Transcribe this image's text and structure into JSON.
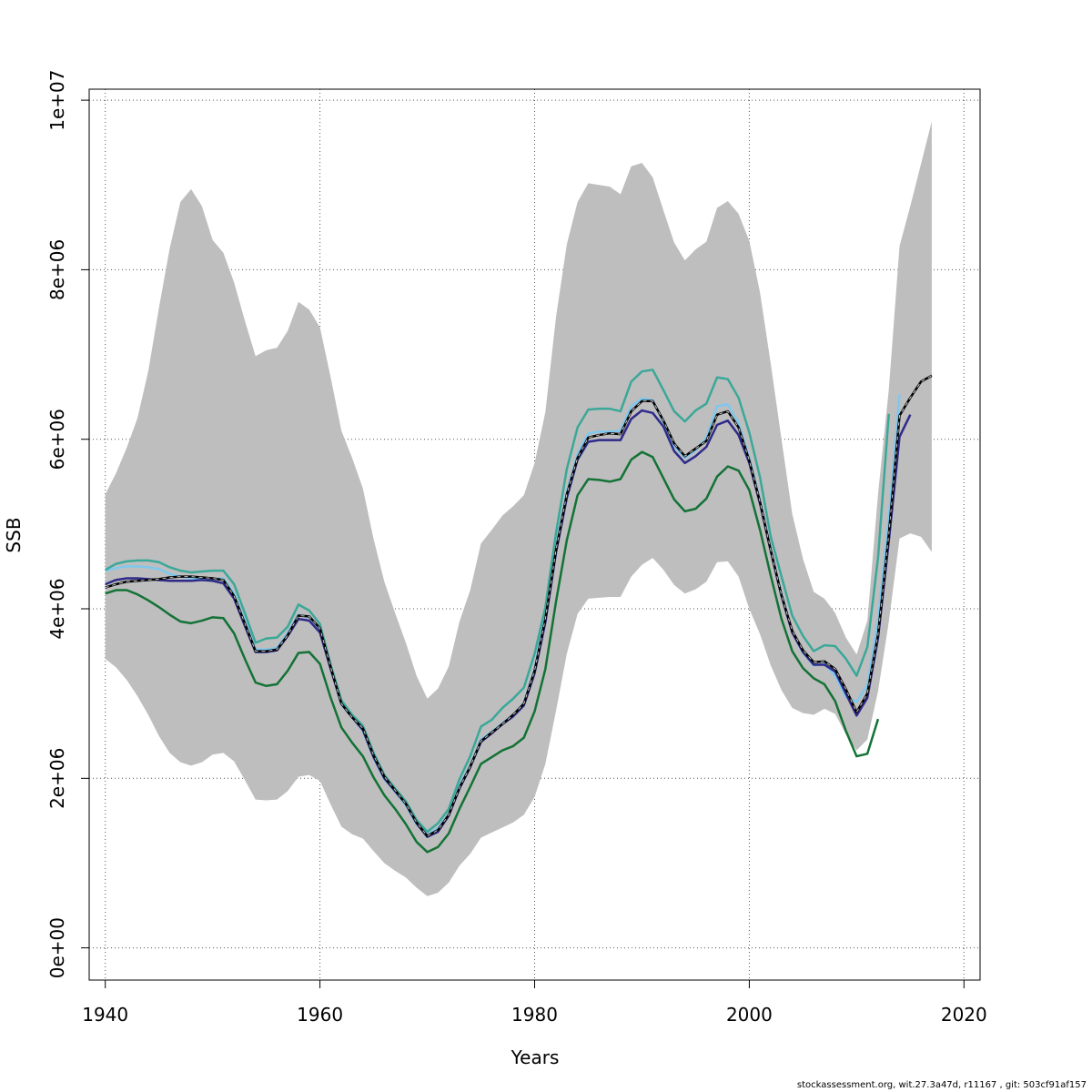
{
  "footer": "stockassessment.org, wit.27.3a47d, r11167 , git: 503cf91af157",
  "chart_data": {
    "type": "line",
    "title": "",
    "xlabel": "Years",
    "ylabel": "SSB",
    "xlim": [
      1938.5,
      2021.5
    ],
    "ylim": [
      -380000,
      10130000
    ],
    "x_ticks": [
      1940,
      1960,
      1980,
      2000,
      2020
    ],
    "y_ticks": [
      0,
      2000000,
      4000000,
      6000000,
      8000000,
      10000000
    ],
    "y_tick_labels": [
      "0e+00",
      "2e+06",
      "4e+06",
      "6e+06",
      "8e+06",
      "1e+07"
    ],
    "grid": true,
    "legend": "none",
    "colors": {
      "band": "#bebebe",
      "main": "#000000",
      "main_dash": "#c8c8c8",
      "series_lightblue": "#7ec8ee",
      "series_teal": "#3aa898",
      "series_navy": "#2e2a8a",
      "series_green": "#137236"
    },
    "band": {
      "x": [
        1940,
        1941,
        1942,
        1943,
        1944,
        1945,
        1946,
        1947,
        1948,
        1949,
        1950,
        1951,
        1952,
        1953,
        1954,
        1955,
        1956,
        1957,
        1958,
        1959,
        1960,
        1961,
        1962,
        1963,
        1964,
        1965,
        1966,
        1967,
        1968,
        1969,
        1970,
        1971,
        1972,
        1973,
        1974,
        1975,
        1976,
        1977,
        1978,
        1979,
        1980,
        1981,
        1982,
        1983,
        1984,
        1985,
        1986,
        1987,
        1988,
        1989,
        1990,
        1991,
        1992,
        1993,
        1994,
        1995,
        1996,
        1997,
        1998,
        1999,
        2000,
        2001,
        2002,
        2003,
        2004,
        2005,
        2006,
        2007,
        2008,
        2009,
        2010,
        2011,
        2012,
        2013,
        2014,
        2015,
        2016,
        2017
      ],
      "upper": [
        5350000,
        5600000,
        5900000,
        6250000,
        6800000,
        7550000,
        8250000,
        8800000,
        8950000,
        8750000,
        8350000,
        8200000,
        7850000,
        7400000,
        6980000,
        7050000,
        7080000,
        7280000,
        7620000,
        7530000,
        7320000,
        6730000,
        6100000,
        5780000,
        5420000,
        4820000,
        4320000,
        3950000,
        3600000,
        3210000,
        2940000,
        3060000,
        3320000,
        3850000,
        4220000,
        4770000,
        4930000,
        5100000,
        5210000,
        5340000,
        5720000,
        6320000,
        7450000,
        8300000,
        8800000,
        9020000,
        9000000,
        8980000,
        8890000,
        9220000,
        9260000,
        9090000,
        8700000,
        8320000,
        8110000,
        8240000,
        8330000,
        8730000,
        8810000,
        8660000,
        8340000,
        7730000,
        6890000,
        6000000,
        5120000,
        4590000,
        4200000,
        4120000,
        3950000,
        3660000,
        3460000,
        3860000,
        5360000,
        6590000,
        8280000,
        8750000,
        9250000,
        9750000
      ],
      "lower": [
        3410000,
        3310000,
        3160000,
        2970000,
        2750000,
        2500000,
        2300000,
        2190000,
        2150000,
        2190000,
        2280000,
        2300000,
        2200000,
        1980000,
        1750000,
        1740000,
        1750000,
        1850000,
        2020000,
        2040000,
        1970000,
        1690000,
        1430000,
        1340000,
        1290000,
        1140000,
        1000000,
        910000,
        830000,
        710000,
        610000,
        650000,
        770000,
        970000,
        1110000,
        1300000,
        1360000,
        1420000,
        1480000,
        1570000,
        1780000,
        2170000,
        2800000,
        3470000,
        3940000,
        4120000,
        4130000,
        4140000,
        4140000,
        4380000,
        4520000,
        4600000,
        4460000,
        4280000,
        4180000,
        4230000,
        4320000,
        4550000,
        4560000,
        4380000,
        4000000,
        3700000,
        3330000,
        3040000,
        2830000,
        2770000,
        2750000,
        2820000,
        2760000,
        2520000,
        2330000,
        2460000,
        3030000,
        3850000,
        4830000,
        4890000,
        4850000,
        4670000
      ]
    },
    "series": [
      {
        "color_key": "series_lightblue",
        "x": [
          1940,
          1941,
          1942,
          1943,
          1944,
          1945,
          1946,
          1947,
          1948,
          1949,
          1950,
          1951,
          1952,
          1953,
          1954,
          1955,
          1956,
          1957,
          1958,
          1959,
          1960,
          1961,
          1962,
          1963,
          1964,
          1965,
          1966,
          1967,
          1968,
          1969,
          1970,
          1971,
          1972,
          1973,
          1974,
          1975,
          1976,
          1977,
          1978,
          1979,
          1980,
          1981,
          1982,
          1983,
          1984,
          1985,
          1986,
          1987,
          1988,
          1989,
          1990,
          1991,
          1992,
          1993,
          1994,
          1995,
          1996,
          1997,
          1998,
          1999,
          2000,
          2001,
          2002,
          2003,
          2004,
          2005,
          2006,
          2007,
          2008,
          2009,
          2010,
          2011,
          2012,
          2013,
          2014
        ],
        "values": [
          4450000,
          4480000,
          4500000,
          4500000,
          4490000,
          4470000,
          4410000,
          4380000,
          4360000,
          4350000,
          4350000,
          4360000,
          4180000,
          3860000,
          3520000,
          3520000,
          3540000,
          3720000,
          3930000,
          3900000,
          3760000,
          3300000,
          2870000,
          2720000,
          2560000,
          2240000,
          1990000,
          1840000,
          1680000,
          1460000,
          1340000,
          1410000,
          1580000,
          1920000,
          2150000,
          2460000,
          2550000,
          2650000,
          2750000,
          2890000,
          3290000,
          3960000,
          4750000,
          5380000,
          5830000,
          6070000,
          6090000,
          6090000,
          6100000,
          6390000,
          6480000,
          6460000,
          6200000,
          5920000,
          5780000,
          5870000,
          6020000,
          6390000,
          6410000,
          6190000,
          5780000,
          5280000,
          4700000,
          4180000,
          3720000,
          3480000,
          3330000,
          3350000,
          3210000,
          2960000,
          2900000,
          3100000,
          3880000,
          5090000,
          6530000
        ]
      },
      {
        "color_key": "series_teal",
        "x": [
          1940,
          1941,
          1942,
          1943,
          1944,
          1945,
          1946,
          1947,
          1948,
          1949,
          1950,
          1951,
          1952,
          1953,
          1954,
          1955,
          1956,
          1957,
          1958,
          1959,
          1960,
          1961,
          1962,
          1963,
          1964,
          1965,
          1966,
          1967,
          1968,
          1969,
          1970,
          1971,
          1972,
          1973,
          1974,
          1975,
          1976,
          1977,
          1978,
          1979,
          1980,
          1981,
          1982,
          1983,
          1984,
          1985,
          1986,
          1987,
          1988,
          1989,
          1990,
          1991,
          1992,
          1993,
          1994,
          1995,
          1996,
          1997,
          1998,
          1999,
          2000,
          2001,
          2002,
          2003,
          2004,
          2005,
          2006,
          2007,
          2008,
          2009,
          2010,
          2011,
          2012,
          2013
        ],
        "values": [
          4460000,
          4530000,
          4560000,
          4570000,
          4570000,
          4550000,
          4490000,
          4450000,
          4430000,
          4440000,
          4450000,
          4450000,
          4290000,
          3950000,
          3600000,
          3650000,
          3660000,
          3790000,
          4050000,
          3980000,
          3820000,
          3340000,
          2920000,
          2750000,
          2620000,
          2300000,
          2040000,
          1880000,
          1730000,
          1510000,
          1370000,
          1470000,
          1640000,
          1990000,
          2260000,
          2610000,
          2690000,
          2830000,
          2940000,
          3070000,
          3470000,
          4020000,
          4900000,
          5650000,
          6140000,
          6350000,
          6360000,
          6360000,
          6330000,
          6680000,
          6800000,
          6820000,
          6580000,
          6330000,
          6210000,
          6340000,
          6420000,
          6730000,
          6710000,
          6490000,
          6080000,
          5550000,
          4850000,
          4380000,
          3920000,
          3680000,
          3500000,
          3570000,
          3560000,
          3410000,
          3210000,
          3550000,
          4610000,
          6300000
        ]
      },
      {
        "color_key": "series_navy",
        "x": [
          1940,
          1941,
          1942,
          1943,
          1944,
          1945,
          1946,
          1947,
          1948,
          1949,
          1950,
          1951,
          1952,
          1953,
          1954,
          1955,
          1956,
          1957,
          1958,
          1959,
          1960,
          1961,
          1962,
          1963,
          1964,
          1965,
          1966,
          1967,
          1968,
          1969,
          1970,
          1971,
          1972,
          1973,
          1974,
          1975,
          1976,
          1977,
          1978,
          1979,
          1980,
          1981,
          1982,
          1983,
          1984,
          1985,
          1986,
          1987,
          1988,
          1989,
          1990,
          1991,
          1992,
          1993,
          1994,
          1995,
          1996,
          1997,
          1998,
          1999,
          2000,
          2001,
          2002,
          2003,
          2004,
          2005,
          2006,
          2007,
          2008,
          2009,
          2010,
          2011,
          2012,
          2013,
          2014,
          2015
        ],
        "values": [
          4290000,
          4340000,
          4360000,
          4360000,
          4350000,
          4340000,
          4330000,
          4330000,
          4330000,
          4340000,
          4330000,
          4300000,
          4120000,
          3800000,
          3490000,
          3490000,
          3510000,
          3680000,
          3880000,
          3860000,
          3720000,
          3290000,
          2880000,
          2720000,
          2570000,
          2250000,
          2000000,
          1850000,
          1700000,
          1470000,
          1310000,
          1370000,
          1560000,
          1880000,
          2130000,
          2430000,
          2530000,
          2640000,
          2730000,
          2860000,
          3240000,
          3840000,
          4670000,
          5310000,
          5760000,
          5970000,
          5990000,
          5990000,
          5990000,
          6240000,
          6340000,
          6310000,
          6150000,
          5860000,
          5720000,
          5800000,
          5910000,
          6170000,
          6220000,
          6050000,
          5720000,
          5240000,
          4680000,
          4150000,
          3720000,
          3490000,
          3340000,
          3340000,
          3260000,
          3000000,
          2740000,
          2950000,
          3660000,
          4800000,
          6030000,
          6290000
        ]
      },
      {
        "color_key": "series_green",
        "x": [
          1940,
          1941,
          1942,
          1943,
          1944,
          1945,
          1946,
          1947,
          1948,
          1949,
          1950,
          1951,
          1952,
          1953,
          1954,
          1955,
          1956,
          1957,
          1958,
          1959,
          1960,
          1961,
          1962,
          1963,
          1964,
          1965,
          1966,
          1967,
          1968,
          1969,
          1970,
          1971,
          1972,
          1973,
          1974,
          1975,
          1976,
          1977,
          1978,
          1979,
          1980,
          1981,
          1982,
          1983,
          1984,
          1985,
          1986,
          1987,
          1988,
          1989,
          1990,
          1991,
          1992,
          1993,
          1994,
          1995,
          1996,
          1997,
          1998,
          1999,
          2000,
          2001,
          2002,
          2003,
          2004,
          2005,
          2006,
          2007,
          2008,
          2009,
          2010,
          2011,
          2012
        ],
        "values": [
          4180000,
          4220000,
          4220000,
          4170000,
          4100000,
          4020000,
          3930000,
          3850000,
          3830000,
          3860000,
          3900000,
          3890000,
          3710000,
          3410000,
          3130000,
          3090000,
          3110000,
          3270000,
          3480000,
          3490000,
          3350000,
          2950000,
          2600000,
          2420000,
          2260000,
          2010000,
          1800000,
          1640000,
          1460000,
          1250000,
          1130000,
          1190000,
          1350000,
          1640000,
          1900000,
          2170000,
          2250000,
          2330000,
          2380000,
          2480000,
          2790000,
          3290000,
          4090000,
          4810000,
          5340000,
          5530000,
          5520000,
          5500000,
          5530000,
          5760000,
          5850000,
          5790000,
          5540000,
          5290000,
          5150000,
          5180000,
          5300000,
          5560000,
          5680000,
          5630000,
          5400000,
          4930000,
          4390000,
          3880000,
          3500000,
          3300000,
          3180000,
          3110000,
          2910000,
          2560000,
          2260000,
          2290000,
          2700000
        ]
      }
    ],
    "main": {
      "x": [
        1940,
        1941,
        1942,
        1943,
        1944,
        1945,
        1946,
        1947,
        1948,
        1949,
        1950,
        1951,
        1952,
        1953,
        1954,
        1955,
        1956,
        1957,
        1958,
        1959,
        1960,
        1961,
        1962,
        1963,
        1964,
        1965,
        1966,
        1967,
        1968,
        1969,
        1970,
        1971,
        1972,
        1973,
        1974,
        1975,
        1976,
        1977,
        1978,
        1979,
        1980,
        1981,
        1982,
        1983,
        1984,
        1985,
        1986,
        1987,
        1988,
        1989,
        1990,
        1991,
        1992,
        1993,
        1994,
        1995,
        1996,
        1997,
        1998,
        1999,
        2000,
        2001,
        2002,
        2003,
        2004,
        2005,
        2006,
        2007,
        2008,
        2009,
        2010,
        2011,
        2012,
        2013,
        2014,
        2015,
        2016,
        2017
      ],
      "values": [
        4250000,
        4290000,
        4320000,
        4330000,
        4340000,
        4350000,
        4370000,
        4380000,
        4380000,
        4370000,
        4360000,
        4340000,
        4150000,
        3830000,
        3500000,
        3500000,
        3520000,
        3690000,
        3920000,
        3910000,
        3770000,
        3310000,
        2880000,
        2720000,
        2590000,
        2270000,
        2020000,
        1860000,
        1700000,
        1480000,
        1320000,
        1390000,
        1570000,
        1890000,
        2140000,
        2440000,
        2540000,
        2640000,
        2750000,
        2880000,
        3270000,
        3880000,
        4700000,
        5350000,
        5780000,
        6020000,
        6050000,
        6070000,
        6060000,
        6330000,
        6450000,
        6450000,
        6220000,
        5950000,
        5800000,
        5890000,
        5980000,
        6290000,
        6330000,
        6140000,
        5750000,
        5260000,
        4690000,
        4160000,
        3740000,
        3510000,
        3370000,
        3380000,
        3290000,
        3050000,
        2780000,
        3000000,
        3700000,
        4880000,
        6280000,
        6490000,
        6680000,
        6750000
      ]
    }
  }
}
